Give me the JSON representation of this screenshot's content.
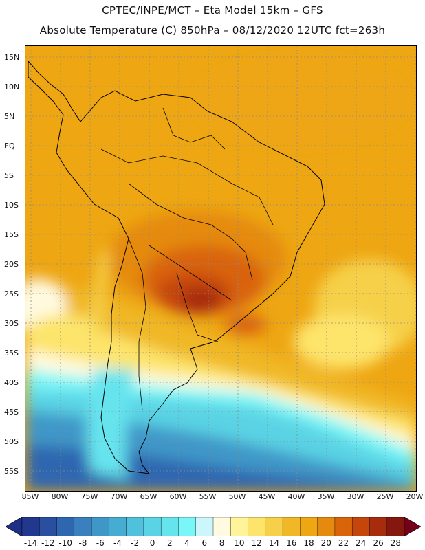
{
  "header": {
    "line1": "CPTEC/INPE/MCT –  Eta Model 15km – GFS",
    "line2": "Absolute Temperature (C) 850hPa – 08/12/2020 12UTC fct=263h"
  },
  "axes": {
    "lat_labels": [
      "15N",
      "10N",
      "5N",
      "EQ",
      "5S",
      "10S",
      "15S",
      "20S",
      "25S",
      "30S",
      "35S",
      "40S",
      "45S",
      "50S",
      "55S"
    ],
    "lon_labels": [
      "85W",
      "80W",
      "75W",
      "70W",
      "65W",
      "60W",
      "55W",
      "50W",
      "45W",
      "40W",
      "35W",
      "30W",
      "25W",
      "20W"
    ]
  },
  "colorbar": {
    "labels": [
      "-14",
      "-12",
      "-10",
      "-8",
      "-6",
      "-4",
      "-2",
      "0",
      "2",
      "4",
      "6",
      "8",
      "10",
      "12",
      "14",
      "16",
      "18",
      "20",
      "22",
      "24",
      "26",
      "28"
    ],
    "low_arrow_color": "#1e2f88",
    "high_arrow_color": "#730018",
    "colors": [
      "#22388f",
      "#2a4ea0",
      "#2f66b0",
      "#3a7fbe",
      "#3f97c8",
      "#46acd2",
      "#4fc1dc",
      "#5ad3e4",
      "#66e4ee",
      "#7af6f8",
      "#ccf6fb",
      "#fffae0",
      "#fff49a",
      "#fde46a",
      "#f6d049",
      "#f0b827",
      "#eea613",
      "#e58a0f",
      "#d9640a",
      "#c5460a",
      "#a62c0d",
      "#86170e"
    ]
  }
}
